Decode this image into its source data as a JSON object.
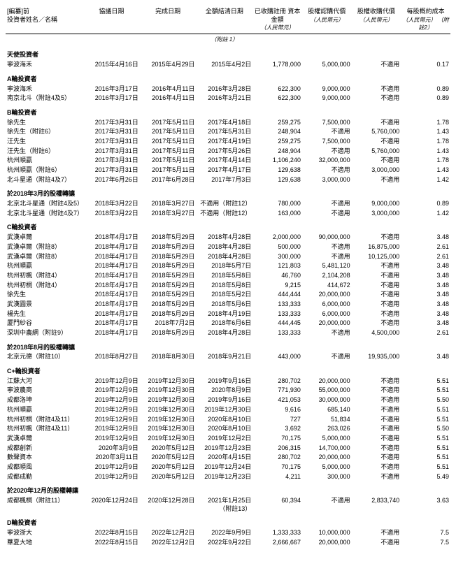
{
  "headers": {
    "redacted": "[編纂]前",
    "name": "投資者姓名／名稱",
    "agreement_date": "協議日期",
    "completion_date": "完成日期",
    "settlement_date": "全額結清日期",
    "subscribed_capital": "已收購註冊\n資本金額",
    "subscription_price": "股權認購代價",
    "acquisition_price": "股權收購代價",
    "per_share_cost": "每股概約成本",
    "unit_rmb": "（人民幣元）",
    "note1": "（附註 1）",
    "note2": "（人民幣元）\n（附註2）"
  },
  "sections": [
    {
      "title": "天使投資者",
      "rows": [
        {
          "name": "寧波海禾",
          "d1": "2015年4月16日",
          "d2": "2015年4月29日",
          "d3": "2015年4月2日",
          "v1": "1,778,000",
          "v2": "5,000,000",
          "v3": "不適用",
          "v4": "0.17"
        }
      ]
    },
    {
      "title": "A輪投資者",
      "rows": [
        {
          "name": "寧波海禾",
          "d1": "2016年3月17日",
          "d2": "2016年4月11日",
          "d3": "2016年3月28日",
          "v1": "622,300",
          "v2": "9,000,000",
          "v3": "不適用",
          "v4": "0.89"
        },
        {
          "name": "南京北斗（附註4及5）",
          "d1": "2016年3月17日",
          "d2": "2016年4月11日",
          "d3": "2016年3月21日",
          "v1": "622,300",
          "v2": "9,000,000",
          "v3": "不適用",
          "v4": "0.89"
        }
      ]
    },
    {
      "title": "B輪投資者",
      "rows": [
        {
          "name": "徐先生",
          "d1": "2017年3月31日",
          "d2": "2017年5月11日",
          "d3": "2017年4月18日",
          "v1": "259,275",
          "v2": "7,500,000",
          "v3": "不適用",
          "v4": "1.78"
        },
        {
          "name": "徐先生（附註6）",
          "d1": "2017年3月31日",
          "d2": "2017年5月11日",
          "d3": "2017年5月31日",
          "v1": "248,904",
          "v2": "不適用",
          "v3": "5,760,000",
          "v4": "1.43"
        },
        {
          "name": "汪先生",
          "d1": "2017年3月31日",
          "d2": "2017年5月11日",
          "d3": "2017年4月19日",
          "v1": "259,275",
          "v2": "7,500,000",
          "v3": "不適用",
          "v4": "1.78"
        },
        {
          "name": "汪先生（附註6）",
          "d1": "2017年3月31日",
          "d2": "2017年5月11日",
          "d3": "2017年5月26日",
          "v1": "248,904",
          "v2": "不適用",
          "v3": "5,760,000",
          "v4": "1.43"
        },
        {
          "name": "杭州順贏",
          "d1": "2017年3月31日",
          "d2": "2017年5月11日",
          "d3": "2017年4月14日",
          "v1": "1,106,240",
          "v2": "32,000,000",
          "v3": "不適用",
          "v4": "1.78"
        },
        {
          "name": "杭州順贏（附註6）",
          "d1": "2017年3月31日",
          "d2": "2017年5月11日",
          "d3": "2017年4月17日",
          "v1": "129,638",
          "v2": "不適用",
          "v3": "3,000,000",
          "v4": "1.43"
        },
        {
          "name": "北斗星通（附註4及7）",
          "d1": "2017年6月26日",
          "d2": "2017年6月28日",
          "d3": "2017年7月3日",
          "v1": "129,638",
          "v2": "3,000,000",
          "v3": "不適用",
          "v4": "1.42"
        }
      ]
    },
    {
      "title": "於2018年3月的股權轉讓",
      "rows": [
        {
          "name": "北京北斗星通（附註4及5）",
          "d1": "2018年3月22日",
          "d2": "2018年3月27日",
          "d3": "不適用（附註12）",
          "v1": "780,000",
          "v2": "不適用",
          "v3": "9,000,000",
          "v4": "0.89"
        },
        {
          "name": "北京北斗星通（附註4及7）",
          "d1": "2018年3月22日",
          "d2": "2018年3月27日",
          "d3": "不適用（附註12）",
          "v1": "163,000",
          "v2": "不適用",
          "v3": "3,000,000",
          "v4": "1.42"
        }
      ]
    },
    {
      "title": "C輪投資者",
      "rows": [
        {
          "name": "武漢卓爾",
          "d1": "2018年4月17日",
          "d2": "2018年5月29日",
          "d3": "2018年4月28日",
          "v1": "2,000,000",
          "v2": "90,000,000",
          "v3": "不適用",
          "v4": "3.48"
        },
        {
          "name": "武漢卓爾（附註8）",
          "d1": "2018年4月17日",
          "d2": "2018年5月29日",
          "d3": "2018年4月28日",
          "v1": "500,000",
          "v2": "不適用",
          "v3": "16,875,000",
          "v4": "2.61"
        },
        {
          "name": "武漢卓爾（附註8）",
          "d1": "2018年4月17日",
          "d2": "2018年5月29日",
          "d3": "2018年4月28日",
          "v1": "300,000",
          "v2": "不適用",
          "v3": "10,125,000",
          "v4": "2.61"
        },
        {
          "name": "杭州順贏",
          "d1": "2018年4月17日",
          "d2": "2018年5月29日",
          "d3": "2018年5月7日",
          "v1": "121,803",
          "v2": "5,481,120",
          "v3": "不適用",
          "v4": "3.48"
        },
        {
          "name": "杭州初楓（附註4）",
          "d1": "2018年4月17日",
          "d2": "2018年5月29日",
          "d3": "2018年5月8日",
          "v1": "46,760",
          "v2": "2,104,208",
          "v3": "不適用",
          "v4": "3.48"
        },
        {
          "name": "杭州初桐（附註4）",
          "d1": "2018年4月17日",
          "d2": "2018年5月29日",
          "d3": "2018年5月8日",
          "v1": "9,215",
          "v2": "414,672",
          "v3": "不適用",
          "v4": "3.48"
        },
        {
          "name": "徐先生",
          "d1": "2018年4月17日",
          "d2": "2018年5月29日",
          "d3": "2018年5月2日",
          "v1": "444,444",
          "v2": "20,000,000",
          "v3": "不適用",
          "v4": "3.48"
        },
        {
          "name": "武漢圓景",
          "d1": "2018年4月17日",
          "d2": "2018年5月29日",
          "d3": "2018年5月6日",
          "v1": "133,333",
          "v2": "6,000,000",
          "v3": "不適用",
          "v4": "3.48"
        },
        {
          "name": "楊先生",
          "d1": "2018年4月17日",
          "d2": "2018年5月29日",
          "d3": "2018年4月19日",
          "v1": "133,333",
          "v2": "6,000,000",
          "v3": "不適用",
          "v4": "3.48"
        },
        {
          "name": "厦門紗谷",
          "d1": "2018年4月17日",
          "d2": "2018年7月2日",
          "d3": "2018年6月6日",
          "v1": "444,445",
          "v2": "20,000,000",
          "v3": "不適用",
          "v4": "3.48"
        },
        {
          "name": "深圳中農網（附註9）",
          "d1": "2018年4月17日",
          "d2": "2018年5月29日",
          "d3": "2018年4月28日",
          "v1": "133,333",
          "v2": "不適用",
          "v3": "4,500,000",
          "v4": "2.61"
        }
      ]
    },
    {
      "title": "於2018年8月的股權轉讓",
      "rows": [
        {
          "name": "北京元德（附註10）",
          "d1": "2018年8月27日",
          "d2": "2018年8月30日",
          "d3": "2018年9月21日",
          "v1": "443,000",
          "v2": "不適用",
          "v3": "19,935,000",
          "v4": "3.48"
        }
      ]
    },
    {
      "title": "C+輪投資者",
      "rows": [
        {
          "name": "江蘇大河",
          "d1": "2019年12月9日",
          "d2": "2019年12月30日",
          "d3": "2019年9月16日",
          "v1": "280,702",
          "v2": "20,000,000",
          "v3": "不適用",
          "v4": "5.51"
        },
        {
          "name": "寧波農商",
          "d1": "2019年12月9日",
          "d2": "2019年12月30日",
          "d3": "2020年8月9日",
          "v1": "771,930",
          "v2": "55,000,000",
          "v3": "不適用",
          "v4": "5.51"
        },
        {
          "name": "成都洛坤",
          "d1": "2019年12月9日",
          "d2": "2019年12月30日",
          "d3": "2019年9月16日",
          "v1": "421,053",
          "v2": "30,000,000",
          "v3": "不適用",
          "v4": "5.50"
        },
        {
          "name": "杭州順贏",
          "d1": "2019年12月9日",
          "d2": "2019年12月30日",
          "d3": "2019年12月30日",
          "v1": "9,616",
          "v2": "685,140",
          "v3": "不適用",
          "v4": "5.51"
        },
        {
          "name": "杭州初桐（附註4及11）",
          "d1": "2019年12月9日",
          "d2": "2019年12月30日",
          "d3": "2020年8月10日",
          "v1": "727",
          "v2": "51,834",
          "v3": "不適用",
          "v4": "5.51"
        },
        {
          "name": "杭州初楓（附註4及11）",
          "d1": "2019年12月9日",
          "d2": "2019年12月30日",
          "d3": "2020年8月10日",
          "v1": "3,692",
          "v2": "263,026",
          "v3": "不適用",
          "v4": "5.50"
        },
        {
          "name": "武漢卓爾",
          "d1": "2019年12月9日",
          "d2": "2019年12月30日",
          "d3": "2019年12月2日",
          "v1": "70,175",
          "v2": "5,000,000",
          "v3": "不適用",
          "v4": "5.51"
        },
        {
          "name": "成都創新",
          "d1": "2020年3月9日",
          "d2": "2020年5月12日",
          "d3": "2019年12月23日",
          "v1": "206,315",
          "v2": "14,700,000",
          "v3": "不適用",
          "v4": "5.51"
        },
        {
          "name": "數聲資本",
          "d1": "2020年3月11日",
          "d2": "2020年5月12日",
          "d3": "2020年4月15日",
          "v1": "280,702",
          "v2": "20,000,000",
          "v3": "不適用",
          "v4": "5.51"
        },
        {
          "name": "成都順風",
          "d1": "2019年12月9日",
          "d2": "2020年5月12日",
          "d3": "2019年12月24日",
          "v1": "70,175",
          "v2": "5,000,000",
          "v3": "不適用",
          "v4": "5.51"
        },
        {
          "name": "成都成勤",
          "d1": "2019年12月9日",
          "d2": "2020年5月12日",
          "d3": "2019年12月23日",
          "v1": "4,211",
          "v2": "300,000",
          "v3": "不適用",
          "v4": "5.49"
        }
      ]
    },
    {
      "title": "於2020年12月的股權轉讓",
      "rows": [
        {
          "name": "成都楓桐（附註11）",
          "d1": "2020年12月24日",
          "d2": "2020年12月28日",
          "d3": "2021年1月25日（附註13）",
          "v1": "60,394",
          "v2": "不適用",
          "v3": "2,833,740",
          "v4": "3.63"
        }
      ]
    },
    {
      "title": "D輪投資者",
      "rows": [
        {
          "name": "寧波浙大",
          "d1": "2022年8月15日",
          "d2": "2022年12月2日",
          "d3": "2022年9月9日",
          "v1": "1,333,333",
          "v2": "10,000,000",
          "v3": "不適用",
          "v4": "7.5"
        },
        {
          "name": "華夏大地",
          "d1": "2022年8月15日",
          "d2": "2022年12月2日",
          "d3": "2022年9月22日",
          "v1": "2,666,667",
          "v2": "20,000,000",
          "v3": "不適用",
          "v4": "7.5"
        }
      ]
    }
  ]
}
